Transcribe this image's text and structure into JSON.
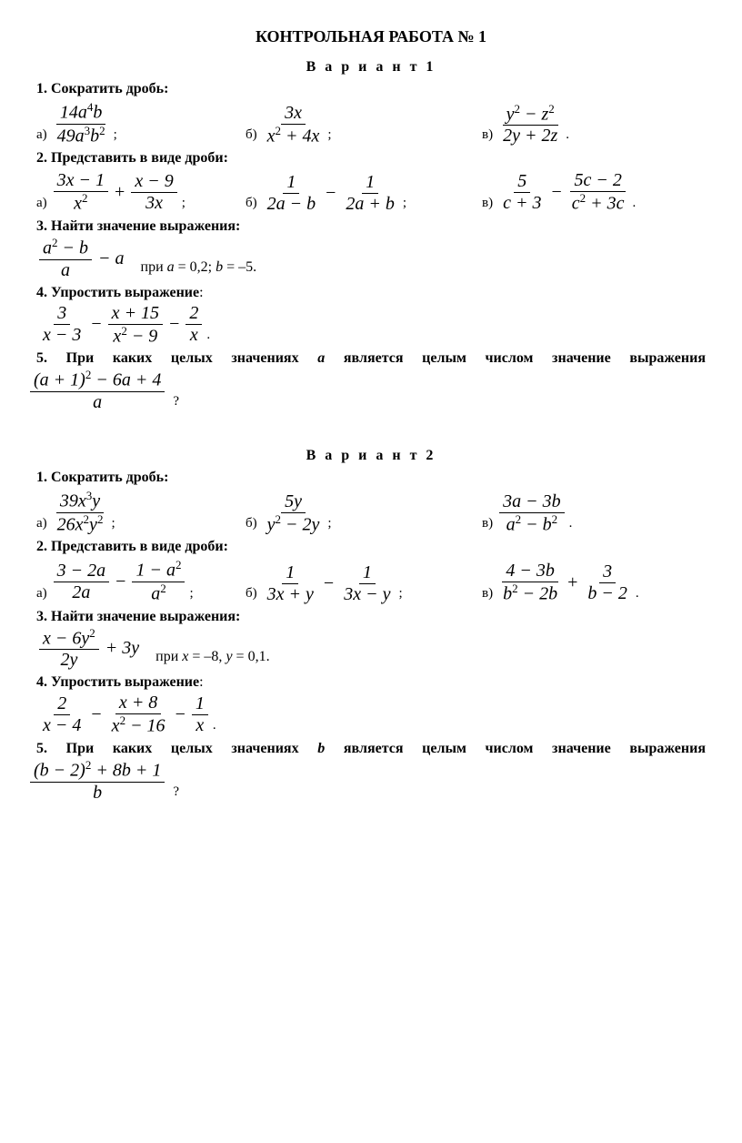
{
  "title": "КОНТРОЛЬНАЯ РАБОТА № 1",
  "variants": [
    {
      "name": "В а р и а н т  1",
      "tasks": {
        "t1": {
          "head": "1. Сократить дробь:",
          "a": {
            "num_html": "14<i>a</i><sup>4</sup><i>b</i>",
            "den_html": "49<i>a</i><sup>3</sup><i>b</i><sup>2</sup>"
          },
          "b": {
            "num_html": "3<i>x</i>",
            "den_html": "<i>x</i><sup>2</sup> + 4<i>x</i>"
          },
          "c": {
            "num_html": "<i>y</i><sup>2</sup> − <i>z</i><sup>2</sup>",
            "den_html": "2<i>y</i> + 2<i>z</i>"
          }
        },
        "t2": {
          "head": "2. Представить в виде дроби:",
          "a": {
            "f1n": "3<i>x</i> − 1",
            "f1d": "<i>x</i><sup>2</sup>",
            "op": "+",
            "f2n": "<i>x</i> − 9",
            "f2d": "3<i>x</i>"
          },
          "b": {
            "f1n": "1",
            "f1d": "2<i>a</i> − <i>b</i>",
            "op": "−",
            "f2n": "1",
            "f2d": "2<i>a</i> + <i>b</i>"
          },
          "c": {
            "f1n": "5",
            "f1d": "<i>c</i> + 3",
            "op": "−",
            "f2n": "5<i>c</i> − 2",
            "f2d": "<i>c</i><sup>2</sup> + 3<i>c</i>"
          }
        },
        "t3": {
          "head": "3. Найти значение выражения:",
          "expr": {
            "num_html": "<i>a</i><sup>2</sup> − <i>b</i>",
            "den_html": "<i>a</i>",
            "tail": "− <i>a</i>"
          },
          "cond_html": "при <i>a</i> = 0,2; <i>b</i> = –5."
        },
        "t4": {
          "head": "4. Упростить выражение",
          "expr_html": "<span class='frac'><span class='num'>3</span><span class='den'><i>x</i> − 3</span></span><span class='op'>−</span><span class='frac'><span class='num'><i>x</i> + 15</span><span class='den'><i>x</i><sup>2</sup> − 9</span></span><span class='op'>−</span><span class='frac'><span class='num'>2</span><span class='den'><i>x</i></span></span>"
        },
        "t5": {
          "text_html": "5. При каких целых значениях <i>a</i> является целым числом значение выражения",
          "expr": {
            "num_html": "(<i>a</i> + 1)<sup>2</sup> − 6<i>a</i> + 4",
            "den_html": "<i>a</i>"
          }
        }
      }
    },
    {
      "name": "В а р и а н т  2",
      "tasks": {
        "t1": {
          "head": "1. Сократить дробь:",
          "a": {
            "num_html": "39<i>x</i><sup>3</sup><i>y</i>",
            "den_html": "26<i>x</i><sup>2</sup><i>y</i><sup>2</sup>"
          },
          "b": {
            "num_html": "5<i>y</i>",
            "den_html": "<i>y</i><sup>2</sup> − 2<i>y</i>"
          },
          "c": {
            "num_html": "3<i>a</i> − 3<i>b</i>",
            "den_html": "<i>a</i><sup>2</sup> − <i>b</i><sup>2</sup>"
          }
        },
        "t2": {
          "head": "2. Представить в виде дроби:",
          "a": {
            "f1n": "3 − 2<i>a</i>",
            "f1d": "2<i>a</i>",
            "op": "−",
            "f2n": "1 − <i>a</i><sup>2</sup>",
            "f2d": "<i>a</i><sup>2</sup>"
          },
          "b": {
            "f1n": "1",
            "f1d": "3<i>x</i> + <i>y</i>",
            "op": "−",
            "f2n": "1",
            "f2d": "3<i>x</i> − <i>y</i>"
          },
          "c": {
            "f1n": "4 − 3<i>b</i>",
            "f1d": "<i>b</i><sup>2</sup> − 2<i>b</i>",
            "op": "+",
            "f2n": "3",
            "f2d": "<i>b</i> − 2"
          }
        },
        "t3": {
          "head": "3. Найти значение выражения:",
          "expr": {
            "num_html": "<i>x</i> − 6<i>y</i><sup>2</sup>",
            "den_html": "2<i>y</i>",
            "tail": "+ 3<i>y</i>"
          },
          "cond_html": "при <i>x</i> = –8, <i>y</i> = 0,1."
        },
        "t4": {
          "head": "4. Упростить выражение",
          "expr_html": "<span class='frac'><span class='num'>2</span><span class='den'><i>x</i> − 4</span></span><span class='op'>−</span><span class='frac'><span class='num'><i>x</i> + 8</span><span class='den'><i>x</i><sup>2</sup> − 16</span></span><span class='op'>−</span><span class='frac'><span class='num'>1</span><span class='den'><i>x</i></span></span>"
        },
        "t5": {
          "text_html": "5. При каких целых значениях <i>b</i> является целым числом значение выражения",
          "expr": {
            "num_html": "(<i>b</i> − 2)<sup>2</sup> + 8<i>b</i> + 1",
            "den_html": "<i>b</i>"
          }
        }
      }
    }
  ],
  "labels": {
    "a": "а)",
    "b": "б)",
    "c": "в)",
    "semi": ";",
    "dot": ".",
    "q": "?",
    "colon": ":"
  }
}
